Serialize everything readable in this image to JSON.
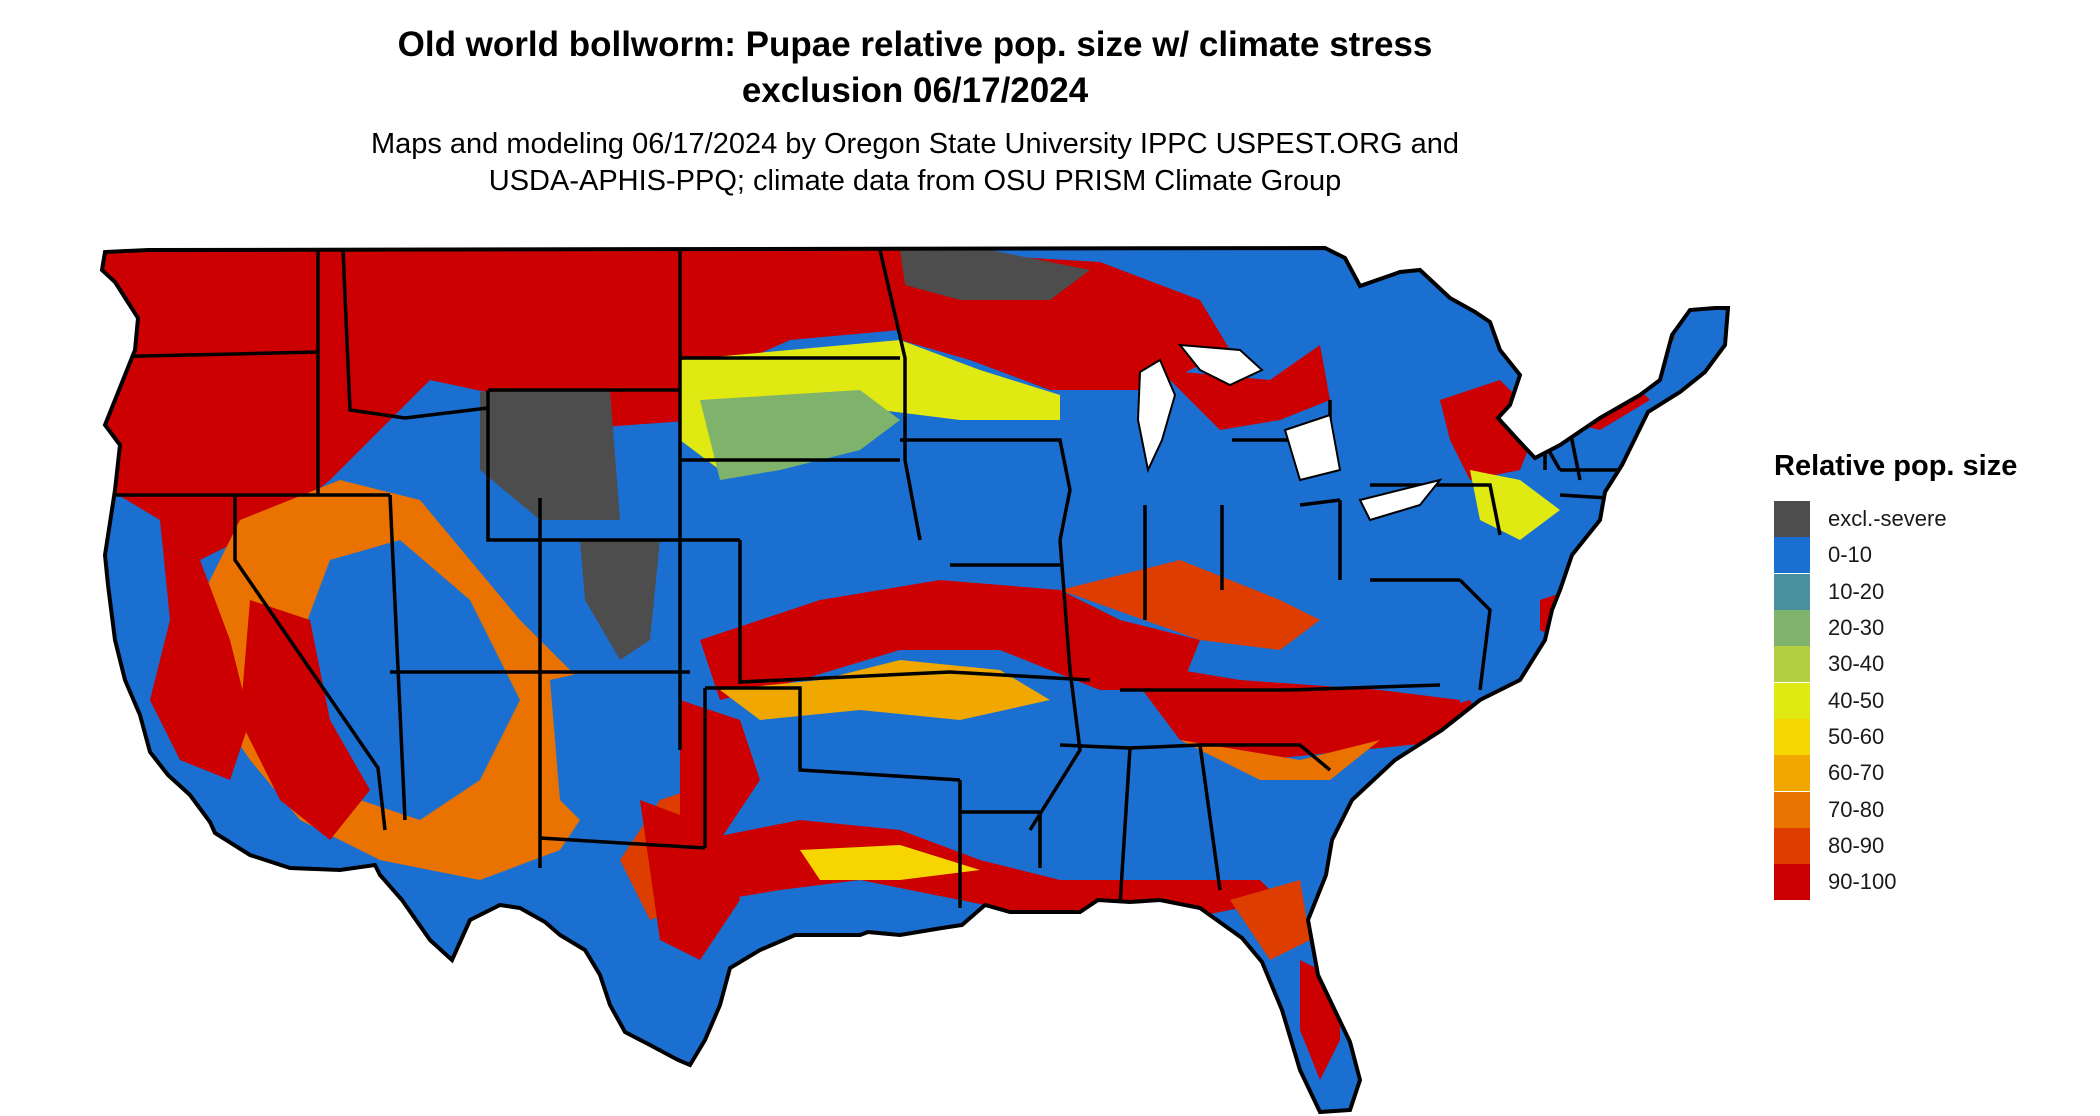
{
  "title_lines": [
    "Old world bollworm: Pupae relative pop. size w/ climate stress",
    "exclusion 06/17/2024"
  ],
  "subtitle_lines": [
    "Maps and modeling 06/17/2024 by Oregon State University IPPC USPEST.ORG and",
    "USDA-APHIS-PPQ; climate data from OSU PRISM Climate Group"
  ],
  "legend": {
    "title": "Relative pop. size",
    "items": [
      {
        "label": "excl.-severe",
        "color": "#4d4d4d"
      },
      {
        "label": "0-10",
        "color": "#1b6fd1"
      },
      {
        "label": "10-20",
        "color": "#4a8fa0"
      },
      {
        "label": "20-30",
        "color": "#7fb36b"
      },
      {
        "label": "30-40",
        "color": "#b1cf3f"
      },
      {
        "label": "40-50",
        "color": "#e0ea12"
      },
      {
        "label": "50-60",
        "color": "#f6d500"
      },
      {
        "label": "60-70",
        "color": "#f0a800"
      },
      {
        "label": "70-80",
        "color": "#e97200"
      },
      {
        "label": "80-90",
        "color": "#dd3e00"
      },
      {
        "label": "90-100",
        "color": "#cc0000"
      }
    ]
  }
}
